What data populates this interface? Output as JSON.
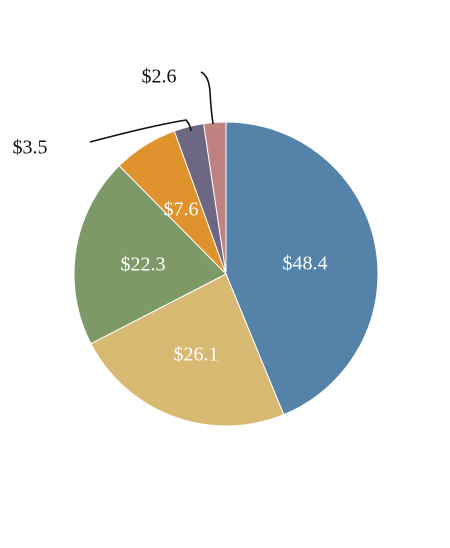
{
  "chart_data": {
    "type": "pie",
    "title": "",
    "slices": [
      {
        "value": 48.4,
        "label": "$48.4",
        "color": "#5482a8",
        "label_position": "inside"
      },
      {
        "value": 26.1,
        "label": "$26.1",
        "color": "#d7b972",
        "label_position": "inside"
      },
      {
        "value": 22.3,
        "label": "$22.3",
        "color": "#7d9967",
        "label_position": "inside"
      },
      {
        "value": 7.6,
        "label": "$7.6",
        "color": "#e0922c",
        "label_position": "inside"
      },
      {
        "value": 3.5,
        "label": "$3.5",
        "color": "#6d6783",
        "label_position": "outside"
      },
      {
        "value": 2.6,
        "label": "$2.6",
        "color": "#c08280",
        "label_position": "outside"
      }
    ],
    "start": "top",
    "direction": "clockwise",
    "legend": "none"
  }
}
